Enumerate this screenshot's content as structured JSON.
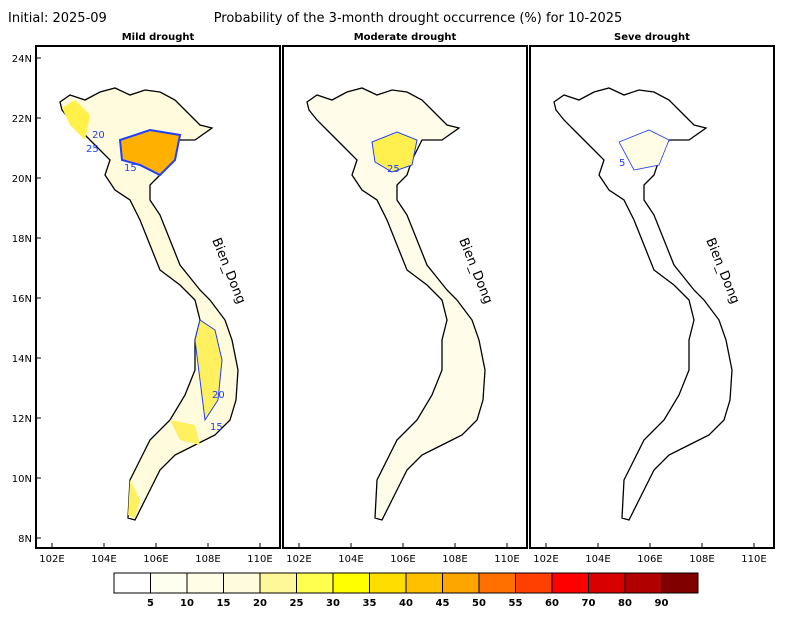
{
  "header": {
    "initial": "Initial: 2025-09",
    "title": "Probability of the 3-month drought occurrence (%) for 10-2025"
  },
  "panels": [
    {
      "title": "Mild drought",
      "contour_labels": [
        "20",
        "25",
        "15",
        "20",
        "15"
      ]
    },
    {
      "title": "Moderate drought",
      "contour_labels": [
        "25"
      ]
    },
    {
      "title": "Seve drought",
      "contour_labels": [
        "5"
      ]
    }
  ],
  "sea_label": "Bien_Dong",
  "lat_ticks": [
    "24N",
    "22N",
    "20N",
    "18N",
    "16N",
    "14N",
    "12N",
    "10N",
    "8N"
  ],
  "lon_ticks": [
    "102E",
    "104E",
    "106E",
    "108E",
    "110E"
  ],
  "colorbar": {
    "labels": [
      "5",
      "10",
      "15",
      "20",
      "25",
      "30",
      "35",
      "40",
      "45",
      "50",
      "55",
      "60",
      "70",
      "80",
      "90"
    ],
    "colors": [
      "#ffffff",
      "#fffff0",
      "#fffde6",
      "#fffbdc",
      "#fff898",
      "#ffff50",
      "#ffff00",
      "#ffdd00",
      "#ffc000",
      "#ffa500",
      "#ff7000",
      "#ff4000",
      "#ff0000",
      "#d80000",
      "#b00000",
      "#800000"
    ]
  }
}
